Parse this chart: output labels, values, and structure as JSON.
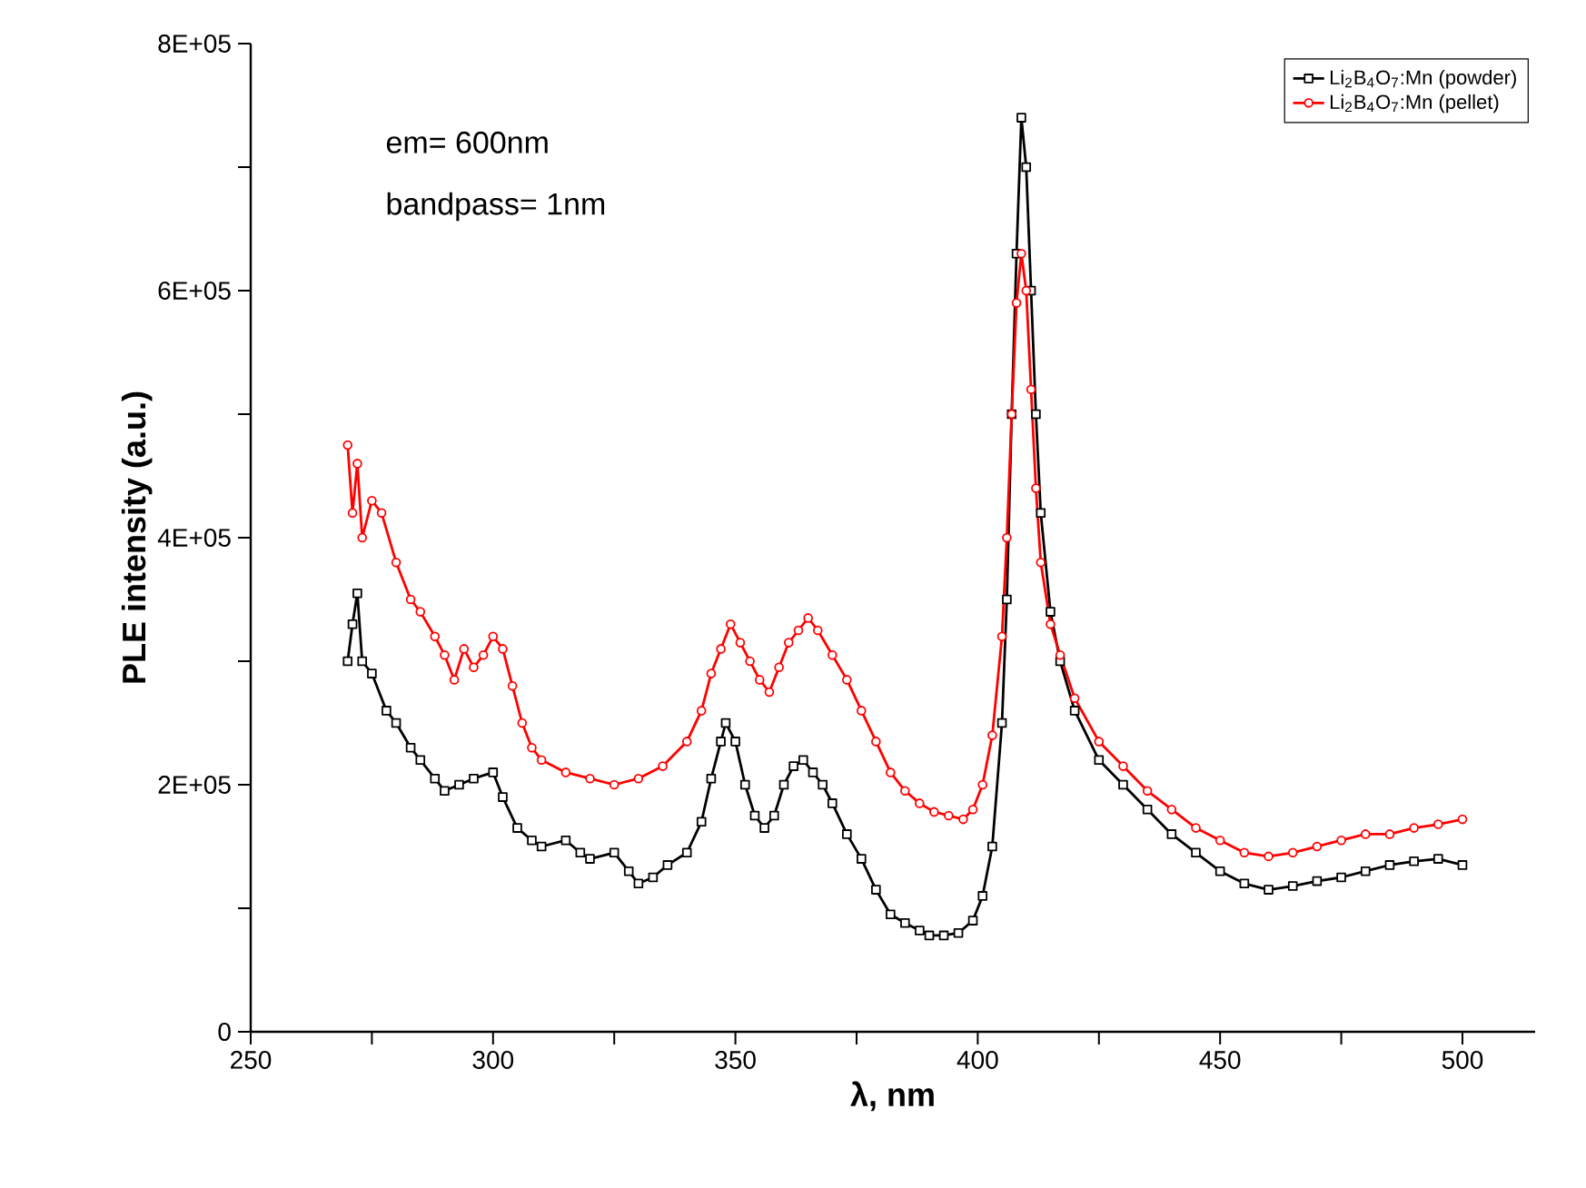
{
  "chart_data": {
    "type": "line",
    "xlabel": "λ, nm",
    "ylabel": "PLE intensity (a.u.)",
    "annotations": [
      "em= 600nm",
      "bandpass= 1nm"
    ],
    "xlim": [
      250,
      515
    ],
    "ylim": [
      0,
      800000
    ],
    "xticks": [
      250,
      {
        "value": 275,
        "label": null
      },
      300,
      {
        "value": 325,
        "label": null
      },
      350,
      {
        "value": 375,
        "label": null
      },
      400,
      {
        "value": 425,
        "label": null
      },
      450,
      {
        "value": 475,
        "label": null
      },
      500
    ],
    "yticks": [
      0,
      {
        "value": 100000,
        "label": null
      },
      {
        "value": 200000,
        "label": "2E+05"
      },
      {
        "value": 300000,
        "label": null
      },
      {
        "value": 400000,
        "label": "4E+05"
      },
      {
        "value": 500000,
        "label": null
      },
      {
        "value": 600000,
        "label": "6E+05"
      },
      {
        "value": 700000,
        "label": null
      },
      {
        "value": 800000,
        "label": "8E+05"
      }
    ],
    "legend": "top right",
    "line_style": "solid",
    "series": [
      {
        "name": "Li$_{2}$B$_{4}$O$_{7}$:Mn (powder)",
        "color": "#000000",
        "marker": "square",
        "x": [
          270,
          271,
          272,
          273,
          275,
          278,
          280,
          283,
          285,
          288,
          290,
          293,
          296,
          300,
          302,
          305,
          308,
          310,
          315,
          318,
          320,
          325,
          328,
          330,
          333,
          336,
          340,
          343,
          345,
          347,
          348,
          350,
          352,
          354,
          356,
          358,
          360,
          362,
          364,
          366,
          368,
          370,
          373,
          376,
          379,
          382,
          385,
          388,
          390,
          393,
          396,
          399,
          401,
          403,
          405,
          406,
          407,
          408,
          409,
          410,
          411,
          412,
          413,
          415,
          417,
          420,
          425,
          430,
          435,
          440,
          445,
          450,
          455,
          460,
          465,
          470,
          475,
          480,
          485,
          490,
          495,
          500
        ],
        "values": [
          300000,
          330000,
          355000,
          300000,
          290000,
          260000,
          250000,
          230000,
          220000,
          205000,
          195000,
          200000,
          205000,
          210000,
          190000,
          165000,
          155000,
          150000,
          155000,
          145000,
          140000,
          145000,
          130000,
          120000,
          125000,
          135000,
          145000,
          170000,
          205000,
          235000,
          250000,
          235000,
          200000,
          175000,
          165000,
          175000,
          200000,
          215000,
          220000,
          210000,
          200000,
          185000,
          160000,
          140000,
          115000,
          95000,
          88000,
          82000,
          78000,
          78000,
          80000,
          90000,
          110000,
          150000,
          250000,
          350000,
          500000,
          630000,
          740000,
          700000,
          600000,
          500000,
          420000,
          340000,
          300000,
          260000,
          220000,
          200000,
          180000,
          160000,
          145000,
          130000,
          120000,
          115000,
          118000,
          122000,
          125000,
          130000,
          135000,
          138000,
          140000,
          135000
        ]
      },
      {
        "name": "Li$_{2}$B$_{4}$O$_{7}$:Mn (pellet)",
        "color": "#ff0000",
        "marker": "circle",
        "x": [
          270,
          271,
          272,
          273,
          275,
          277,
          280,
          283,
          285,
          288,
          290,
          292,
          294,
          296,
          298,
          300,
          302,
          304,
          306,
          308,
          310,
          315,
          320,
          325,
          330,
          335,
          340,
          343,
          345,
          347,
          349,
          351,
          353,
          355,
          357,
          359,
          361,
          363,
          365,
          367,
          370,
          373,
          376,
          379,
          382,
          385,
          388,
          391,
          394,
          397,
          399,
          401,
          403,
          405,
          406,
          407,
          408,
          409,
          410,
          411,
          412,
          413,
          415,
          417,
          420,
          425,
          430,
          435,
          440,
          445,
          450,
          455,
          460,
          465,
          470,
          475,
          480,
          485,
          490,
          495,
          500
        ],
        "values": [
          475000,
          420000,
          460000,
          400000,
          430000,
          420000,
          380000,
          350000,
          340000,
          320000,
          305000,
          285000,
          310000,
          295000,
          305000,
          320000,
          310000,
          280000,
          250000,
          230000,
          220000,
          210000,
          205000,
          200000,
          205000,
          215000,
          235000,
          260000,
          290000,
          310000,
          330000,
          315000,
          300000,
          285000,
          275000,
          295000,
          315000,
          325000,
          335000,
          325000,
          305000,
          285000,
          260000,
          235000,
          210000,
          195000,
          185000,
          178000,
          175000,
          172000,
          180000,
          200000,
          240000,
          320000,
          400000,
          500000,
          590000,
          630000,
          600000,
          520000,
          440000,
          380000,
          330000,
          305000,
          270000,
          235000,
          215000,
          195000,
          180000,
          165000,
          155000,
          145000,
          142000,
          145000,
          150000,
          155000,
          160000,
          160000,
          165000,
          168000,
          172000
        ]
      }
    ]
  }
}
